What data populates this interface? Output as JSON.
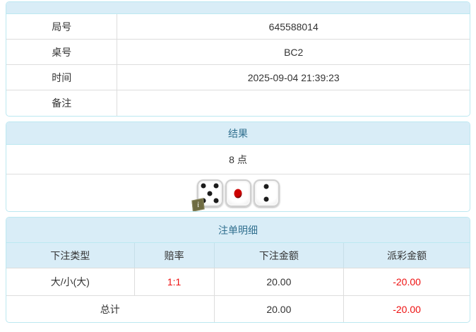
{
  "colors": {
    "panel_border": "#bce8f1",
    "heading_bg": "#d9edf7",
    "heading_text": "#31708f",
    "row_border": "#dddddd",
    "text": "#333333",
    "negative": "#ee1111",
    "pip_black": "#1c1c1c",
    "pip_red": "#cc0000",
    "badge_bg": "#6f6c42"
  },
  "info_table": {
    "rows": [
      {
        "label": "局号",
        "value": "645588014"
      },
      {
        "label": "桌号",
        "value": "BC2"
      },
      {
        "label": "时间",
        "value": "2025-09-04 21:39:23"
      },
      {
        "label": "备注",
        "value": ""
      }
    ]
  },
  "result_panel": {
    "title": "结果",
    "points": "8 点",
    "dice": [
      {
        "pips": 5,
        "color": "#1c1c1c"
      },
      {
        "pips": 1,
        "color": "#cc0000"
      },
      {
        "pips": 2,
        "color": "#1c1c1c"
      }
    ],
    "info_icon": "i"
  },
  "bet_panel": {
    "title": "注单明细",
    "columns": [
      "下注类型",
      "赔率",
      "下注金额",
      "派彩金额"
    ],
    "rows": [
      {
        "type": "大/小(大)",
        "odds": "1:1",
        "bet": "20.00",
        "payout": "-20.00"
      }
    ],
    "total": {
      "label": "总计",
      "bet": "20.00",
      "payout": "-20.00"
    }
  }
}
